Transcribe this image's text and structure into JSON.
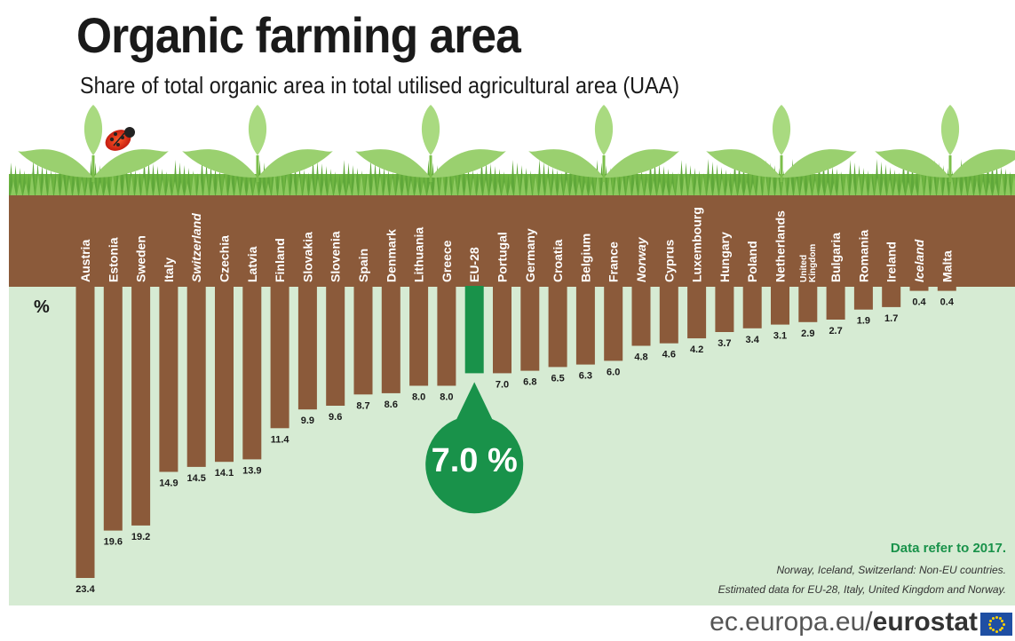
{
  "title": "Organic farming area",
  "subtitle": "Share of total organic area in total utilised agricultural area (UAA)",
  "chart_data": {
    "type": "bar",
    "orientation": "vertical-downward",
    "unit": "%",
    "categories": [
      "Austria",
      "Estonia",
      "Sweden",
      "Italy",
      "Switzerland",
      "Czechia",
      "Latvia",
      "Finland",
      "Slovakia",
      "Slovenia",
      "Spain",
      "Denmark",
      "Lithuania",
      "Greece",
      "EU-28",
      "Portugal",
      "Germany",
      "Croatia",
      "Belgium",
      "France",
      "Norway",
      "Cyprus",
      "Luxembourg",
      "Hungary",
      "Poland",
      "Netherlands",
      "United Kingdom",
      "Bulgaria",
      "Romania",
      "Ireland",
      "Iceland",
      "Malta"
    ],
    "values": [
      23.4,
      19.6,
      19.2,
      14.9,
      14.5,
      14.1,
      13.9,
      11.4,
      9.9,
      9.6,
      8.7,
      8.6,
      8.0,
      8.0,
      7.0,
      7.0,
      6.8,
      6.5,
      6.3,
      6.0,
      4.8,
      4.6,
      4.2,
      3.7,
      3.4,
      3.1,
      2.9,
      2.7,
      1.9,
      1.7,
      0.4,
      0.4
    ],
    "value_labels": [
      "23.4",
      "19.6",
      "19.2",
      "14.9",
      "14.5",
      "14.1",
      "13.9",
      "11.4",
      "9.9",
      "9.6",
      "8.7",
      "8.6",
      "8.0",
      "8.0",
      "",
      "7.0",
      "6.8",
      "6.5",
      "6.3",
      "6.0",
      "4.8",
      "4.6",
      "4.2",
      "3.7",
      "3.4",
      "3.1",
      "2.9",
      "2.7",
      "1.9",
      "1.7",
      "0.4",
      "0.4"
    ],
    "non_eu": [
      "Switzerland",
      "Norway",
      "Iceland"
    ],
    "highlight": {
      "category": "EU-28",
      "label": "7.0 %"
    },
    "colors": {
      "bar": "#8b5a3a",
      "highlight": "#19924a",
      "soil": "#8b5a3a",
      "background": "#d6ebd3",
      "grass": "#5fa83a",
      "note": "#19924a"
    }
  },
  "notes": {
    "year": "Data refer to 2017.",
    "non_eu": "Norway, Iceland, Switzerland: Non-EU countries.",
    "estimated": "Estimated data for EU-28, Italy, United Kingdom and Norway."
  },
  "footer": {
    "site": "ec.europa.eu/",
    "brand": "eurostat"
  }
}
